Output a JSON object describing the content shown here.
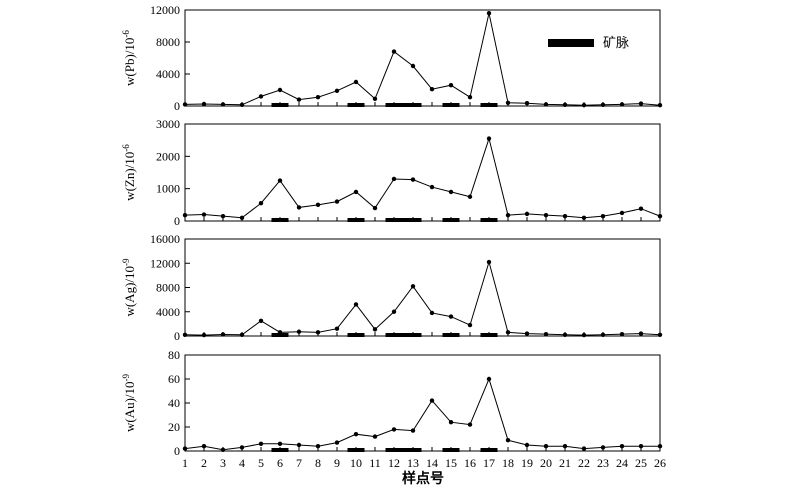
{
  "legend": {
    "label": "矿脉"
  },
  "xlabel": "样点号",
  "x": [
    1,
    2,
    3,
    4,
    5,
    6,
    7,
    8,
    9,
    10,
    11,
    12,
    13,
    14,
    15,
    16,
    17,
    18,
    19,
    20,
    21,
    22,
    23,
    24,
    25,
    26
  ],
  "vein_segments": [
    [
      5.5,
      6.5
    ],
    [
      9.5,
      10.5
    ],
    [
      11.5,
      13.5
    ],
    [
      14.5,
      15.5
    ],
    [
      16.5,
      17.5
    ]
  ],
  "chart_data": [
    {
      "type": "line",
      "ylabel_main": "w(Pb)/10",
      "ylabel_exp": "-6",
      "ylim": [
        0,
        12000
      ],
      "yticks": [
        0,
        4000,
        8000,
        12000
      ],
      "series": [
        {
          "values": [
            200,
            250,
            200,
            150,
            1200,
            2000,
            800,
            1100,
            1900,
            3000,
            900,
            6800,
            5000,
            2100,
            2600,
            1100,
            11600,
            400,
            350,
            200,
            150,
            100,
            150,
            200,
            300,
            100
          ]
        }
      ]
    },
    {
      "type": "line",
      "ylabel_main": "w(Zn)/10",
      "ylabel_exp": "-6",
      "ylim": [
        0,
        3000
      ],
      "yticks": [
        0,
        1000,
        2000,
        3000
      ],
      "series": [
        {
          "values": [
            180,
            200,
            150,
            100,
            550,
            1250,
            420,
            500,
            600,
            900,
            400,
            1300,
            1280,
            1050,
            900,
            750,
            2550,
            180,
            220,
            180,
            150,
            100,
            150,
            250,
            380,
            150
          ]
        }
      ]
    },
    {
      "type": "line",
      "ylabel_main": "w(Ag)/10",
      "ylabel_exp": "-9",
      "ylim": [
        0,
        16000
      ],
      "yticks": [
        0,
        4000,
        8000,
        12000,
        16000
      ],
      "series": [
        {
          "values": [
            200,
            150,
            250,
            200,
            2500,
            600,
            700,
            600,
            1200,
            5200,
            1100,
            4000,
            8200,
            3800,
            3200,
            1800,
            12200,
            600,
            400,
            300,
            200,
            150,
            200,
            300,
            400,
            200
          ]
        }
      ]
    },
    {
      "type": "line",
      "ylabel_main": "w(Au)/10",
      "ylabel_exp": "-9",
      "ylim": [
        0,
        80
      ],
      "yticks": [
        0,
        20,
        40,
        60,
        80
      ],
      "series": [
        {
          "values": [
            2,
            4,
            1,
            3,
            6,
            6,
            5,
            4,
            7,
            14,
            12,
            18,
            17,
            42,
            24,
            22,
            60,
            9,
            5,
            4,
            4,
            2,
            3,
            4,
            4,
            4
          ]
        }
      ]
    }
  ]
}
